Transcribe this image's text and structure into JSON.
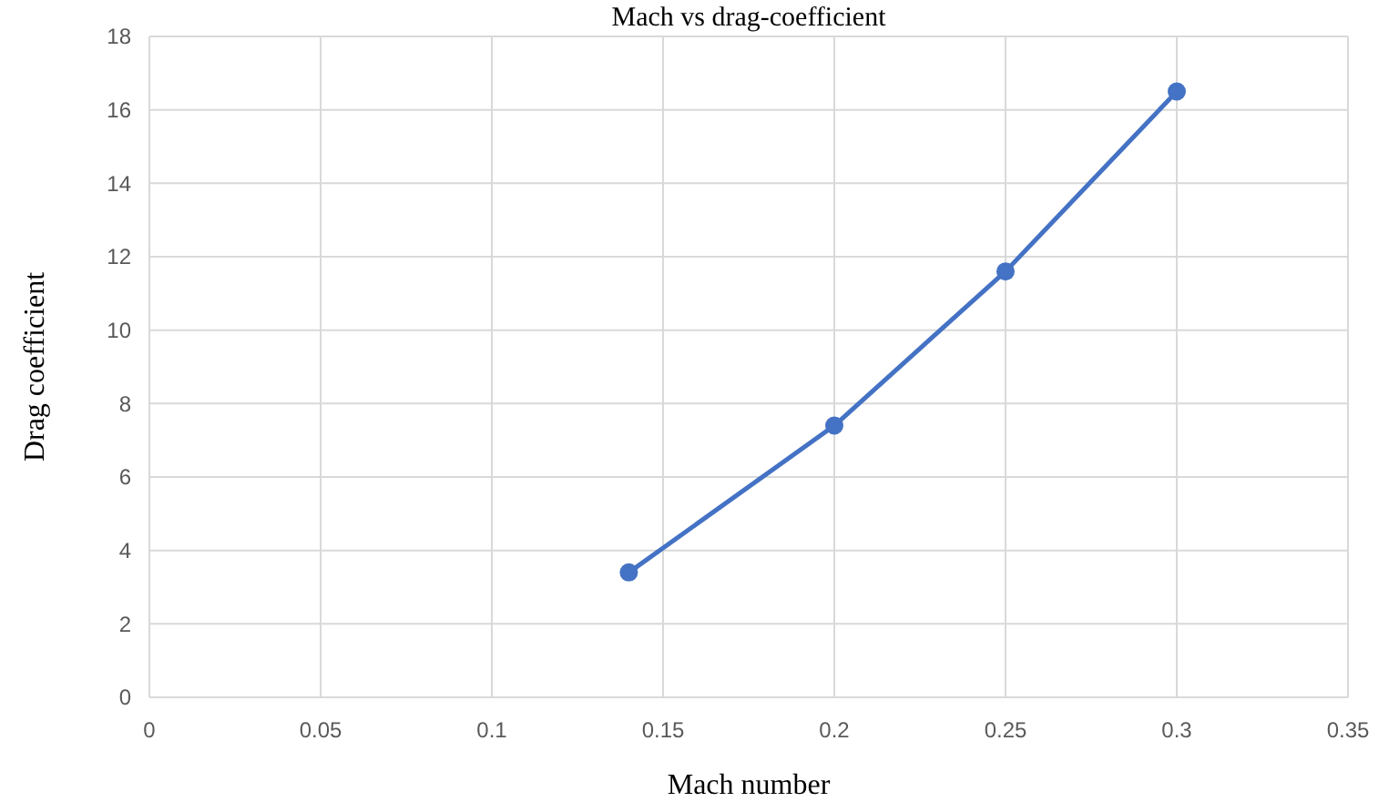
{
  "chart_data": {
    "type": "line",
    "title": "Mach vs drag-coefficient",
    "xlabel": "Mach number",
    "ylabel": "Drag coefficient",
    "x": [
      0.14,
      0.2,
      0.25,
      0.3
    ],
    "series": [
      {
        "color": "#4472c4",
        "values": [
          3.4,
          7.4,
          11.6,
          16.5
        ]
      }
    ],
    "xlim": [
      0,
      0.35
    ],
    "xticks": [
      0,
      0.05,
      0.1,
      0.15,
      0.2,
      0.25,
      0.3,
      0.35
    ],
    "ylim": [
      0,
      18
    ],
    "yticks": [
      0,
      2,
      4,
      6,
      8,
      10,
      12,
      14,
      16,
      18
    ],
    "grid": true,
    "marker": "circle",
    "line_style": "solid"
  }
}
